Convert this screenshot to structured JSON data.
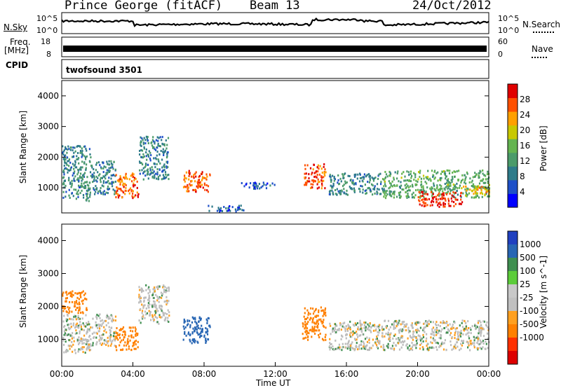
{
  "header": {
    "station": "Prince George (fitACF)",
    "beam": "Beam 13",
    "date": "24/Oct/2012"
  },
  "strip_labels": {
    "nsky": "N.Sky",
    "nsky_top": "10^5",
    "nsky_bottom": "10^0",
    "nsearch": "N.Search",
    "nsearch_top": "10^5",
    "nsearch_bottom": "10^0",
    "freq_1": "Freq.",
    "freq_2": "[MHz]",
    "freq_top": "18",
    "freq_bottom": "8",
    "nave": "Nave",
    "nave_top": "60",
    "nave_bottom": "0",
    "cpid": "CPID",
    "cpid_value": "twofsound 3501"
  },
  "colors": {
    "power_scale": [
      "#0000ff",
      "#1e50c8",
      "#2e7b8a",
      "#4b9b6a",
      "#64b450",
      "#c8c800",
      "#ffa000",
      "#ff5000",
      "#e00000"
    ],
    "velocity_scale": [
      "#2040c0",
      "#2866b4",
      "#3f8f50",
      "#5ccc3a",
      "#c8c8c8",
      "#c0c0c0",
      "#ffa020",
      "#ff8000",
      "#ff3000",
      "#dd0000"
    ],
    "ground_scatter": "#bdbdbd"
  },
  "chart_data": [
    {
      "type": "heatmap",
      "name": "power-panel",
      "ylabel": "Slant Range [km]",
      "xlabel": "",
      "x_ticks": [
        "00:00",
        "04:00",
        "08:00",
        "12:00",
        "16:00",
        "20:00",
        "00:00"
      ],
      "x_range_hours": [
        0,
        24
      ],
      "y_ticks": [
        1000,
        2000,
        3000,
        4000
      ],
      "y_range": [
        180,
        4500
      ],
      "colorbar": {
        "label": "Power [dB]",
        "ticks": [
          4,
          8,
          12,
          16,
          20,
          24,
          28
        ],
        "range": [
          0,
          32
        ]
      },
      "echo_regions": [
        {
          "t": [
            0.0,
            1.6
          ],
          "r": [
            600,
            2400
          ],
          "v": 10
        },
        {
          "t": [
            1.6,
            3.0
          ],
          "r": [
            800,
            1900
          ],
          "v": 9
        },
        {
          "t": [
            3.0,
            4.3
          ],
          "r": [
            700,
            1500
          ],
          "v": 26
        },
        {
          "t": [
            4.3,
            6.0
          ],
          "r": [
            1300,
            2700
          ],
          "v": 9
        },
        {
          "t": [
            6.8,
            8.3
          ],
          "r": [
            900,
            1600
          ],
          "v": 27
        },
        {
          "t": [
            8.2,
            10.2
          ],
          "r": [
            250,
            450
          ],
          "v": 6
        },
        {
          "t": [
            10.0,
            12.0
          ],
          "r": [
            1000,
            1200
          ],
          "v": 7
        },
        {
          "t": [
            13.6,
            14.8
          ],
          "r": [
            1000,
            1800
          ],
          "v": 27
        },
        {
          "t": [
            15.0,
            18.0
          ],
          "r": [
            800,
            1500
          ],
          "v": 10
        },
        {
          "t": [
            18.0,
            24.0
          ],
          "r": [
            700,
            1600
          ],
          "v": 14
        },
        {
          "t": [
            20.0,
            22.5
          ],
          "r": [
            400,
            900
          ],
          "v": 29
        },
        {
          "t": [
            22.5,
            24.0
          ],
          "r": [
            800,
            1100
          ],
          "v": 22
        }
      ]
    },
    {
      "type": "heatmap",
      "name": "velocity-panel",
      "ylabel": "Slant Range [km]",
      "xlabel": "Time UT",
      "x_ticks": [
        "00:00",
        "04:00",
        "08:00",
        "12:00",
        "16:00",
        "20:00",
        "00:00"
      ],
      "x_range_hours": [
        0,
        24
      ],
      "y_ticks": [
        1000,
        2000,
        3000,
        4000
      ],
      "y_range": [
        180,
        4500
      ],
      "colorbar": {
        "label": "Velocity [m s^-1]",
        "ticks": [
          1000,
          500,
          100,
          25,
          -25,
          -100,
          -500,
          -1000
        ]
      },
      "echo_regions": [
        {
          "t": [
            0.0,
            1.6
          ],
          "r": [
            600,
            1800
          ],
          "v": 0
        },
        {
          "t": [
            0.0,
            1.4
          ],
          "r": [
            1800,
            2500
          ],
          "v": -150
        },
        {
          "t": [
            1.6,
            3.0
          ],
          "r": [
            800,
            1800
          ],
          "v": 0
        },
        {
          "t": [
            3.0,
            4.3
          ],
          "r": [
            700,
            1400
          ],
          "v": -400
        },
        {
          "t": [
            4.3,
            6.0
          ],
          "r": [
            1500,
            2700
          ],
          "v": 0
        },
        {
          "t": [
            6.8,
            8.3
          ],
          "r": [
            900,
            1700
          ],
          "v": 200
        },
        {
          "t": [
            13.5,
            14.8
          ],
          "r": [
            1000,
            2000
          ],
          "v": -200
        },
        {
          "t": [
            15.0,
            24.0
          ],
          "r": [
            700,
            1600
          ],
          "v": 0
        }
      ]
    }
  ]
}
